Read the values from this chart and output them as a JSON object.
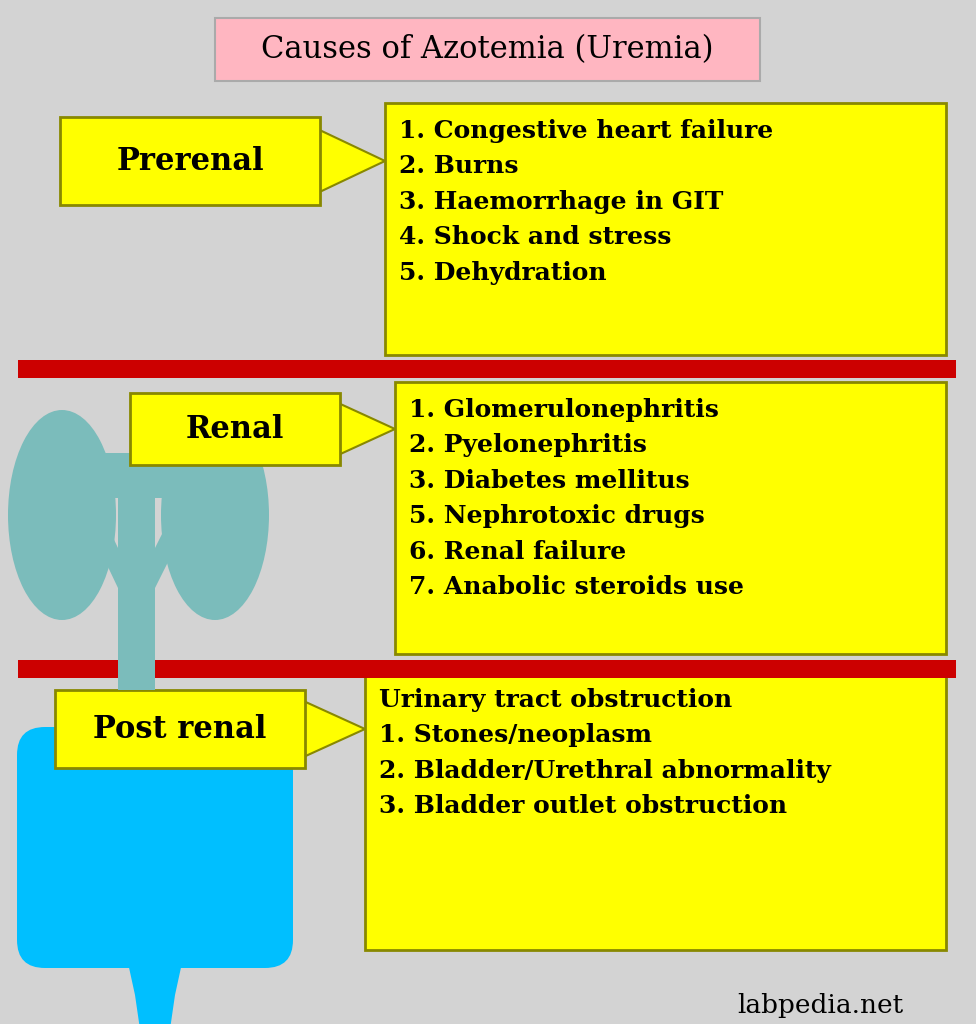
{
  "title": "Causes of Azotemia (Uremia)",
  "title_bg": "#FFB6C1",
  "title_border": "#aaaaaa",
  "bg_color": "#D3D3D3",
  "yellow": "#FFFF00",
  "yellow_border": "#888800",
  "red_color": "#CC0000",
  "prerenal_label": "Prerenal",
  "prerenal_items": "1. Congestive heart failure\n2. Burns\n3. Haemorrhage in GIT\n4. Shock and stress\n5. Dehydration",
  "renal_label": "Renal",
  "renal_items": "1. Glomerulonephritis\n2. Pyelonephritis\n3. Diabetes mellitus\n5. Nephrotoxic drugs\n6. Renal failure\n7. Anabolic steroids use",
  "postrenal_label": "Post renal",
  "postrenal_items": "Urinary tract obstruction\n1. Stones/neoplasm\n2. Bladder/Urethral abnormality\n3. Bladder outlet obstruction",
  "kidney_color": "#7BBCBB",
  "bladder_color": "#00BFFF",
  "watermark": "labpedia.net",
  "fig_w": 9.76,
  "fig_h": 10.24,
  "dpi": 100
}
